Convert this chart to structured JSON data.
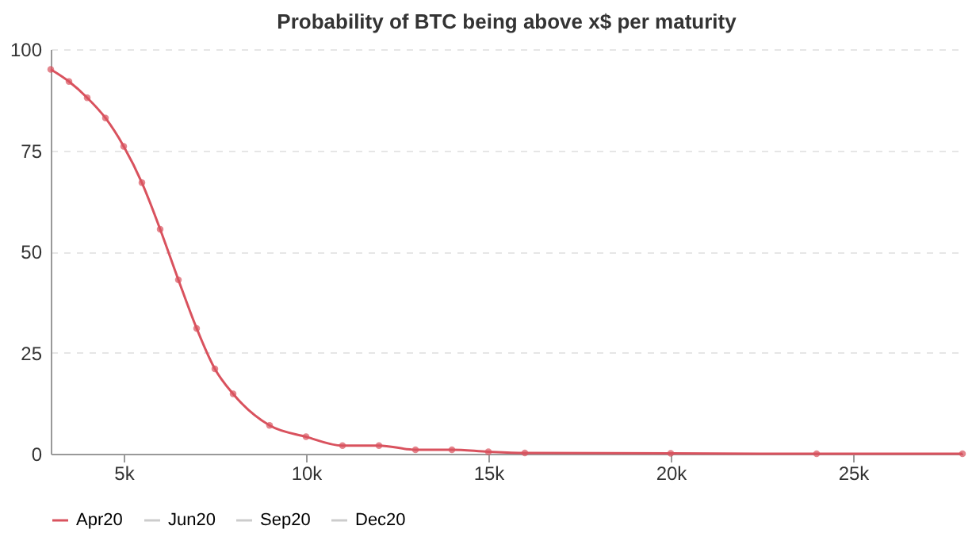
{
  "chart_data": {
    "type": "line",
    "title": "Probability of BTC being above x$ per maturity",
    "x": [
      3000,
      3500,
      4000,
      4500,
      5000,
      5500,
      6000,
      6500,
      7000,
      7500,
      8000,
      9000,
      10000,
      11000,
      12000,
      13000,
      14000,
      15000,
      16000,
      20000,
      24000,
      28000
    ],
    "series": [
      {
        "name": "Apr20",
        "color": "#d9525e",
        "values": [
          95,
          92,
          88,
          83,
          76,
          67,
          55.5,
          43,
          31,
          21,
          14.8,
          7,
          4.2,
          2,
          2,
          1,
          1,
          0.5,
          0.2,
          0.1,
          0,
          0
        ]
      },
      {
        "name": "Jun20",
        "color": "#cccccc",
        "values": [
          null,
          null,
          null,
          null,
          null,
          null,
          null,
          null,
          null,
          null,
          null,
          null,
          null,
          null,
          null,
          null,
          null,
          null,
          null,
          null,
          null,
          null
        ]
      },
      {
        "name": "Sep20",
        "color": "#cccccc",
        "values": [
          null,
          null,
          null,
          null,
          null,
          null,
          null,
          null,
          null,
          null,
          null,
          null,
          null,
          null,
          null,
          null,
          null,
          null,
          null,
          null,
          null,
          null
        ]
      },
      {
        "name": "Dec20",
        "color": "#cccccc",
        "values": [
          null,
          null,
          null,
          null,
          null,
          null,
          null,
          null,
          null,
          null,
          null,
          null,
          null,
          null,
          null,
          null,
          null,
          null,
          null,
          null,
          null,
          null
        ]
      }
    ],
    "xlim": [
      3000,
      28000
    ],
    "xticks": [
      {
        "value": 5000,
        "label": "5k"
      },
      {
        "value": 10000,
        "label": "10k"
      },
      {
        "value": 15000,
        "label": "15k"
      },
      {
        "value": 20000,
        "label": "20k"
      },
      {
        "value": 25000,
        "label": "25k"
      }
    ],
    "ylim": [
      0,
      100
    ],
    "yticks": [
      0,
      25,
      50,
      75,
      100
    ],
    "grid": "y",
    "legend": "bottom",
    "marker": "circle",
    "line_style": "solid"
  }
}
